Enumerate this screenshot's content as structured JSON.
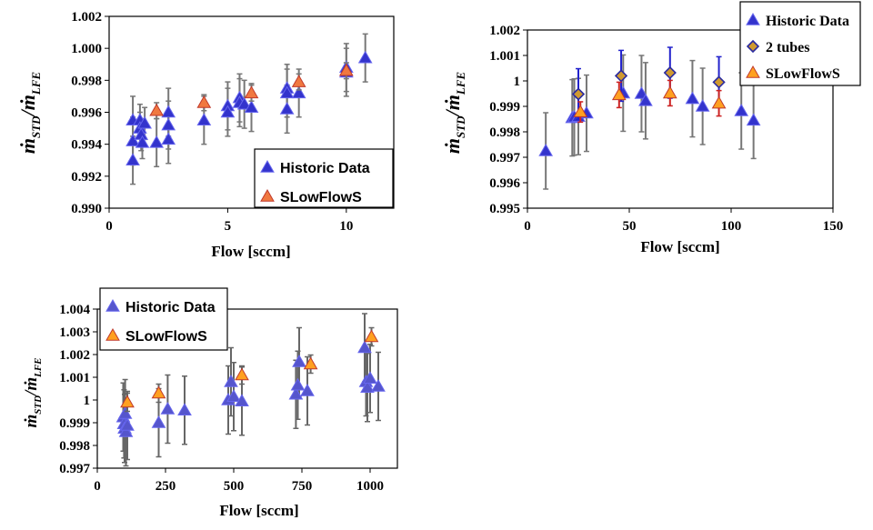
{
  "chart_data": [
    {
      "type": "scatter",
      "xlabel": "Flow [sccm]",
      "ylabel_main": "ṁ",
      "ylabel_sub1": "STD",
      "ylabel_sep": "/ṁ",
      "ylabel_sub2": "LFE",
      "xlim": [
        0,
        12
      ],
      "ylim": [
        0.99,
        1.002
      ],
      "xticks": [
        0,
        5,
        10
      ],
      "yticks": [
        0.99,
        0.992,
        0.994,
        0.996,
        0.998,
        1.0,
        1.002
      ],
      "xtick_labels": [
        "0",
        "5",
        "10"
      ],
      "ytick_labels": [
        "0.990",
        "0.992",
        "0.994",
        "0.996",
        "0.998",
        "1.000",
        "1.002"
      ],
      "legend_position": "bottom-right",
      "series": [
        {
          "name": "Historic Data",
          "marker": "triangle",
          "color": "#3333cc",
          "errcolor": "#777777",
          "points": [
            [
              1.0,
              0.9955,
              0.0015
            ],
            [
              1.0,
              0.9942,
              0.0015
            ],
            [
              1.0,
              0.993,
              0.0015
            ],
            [
              1.3,
              0.9955,
              0.001
            ],
            [
              1.3,
              0.995,
              0.001
            ],
            [
              1.35,
              0.9946,
              0.001
            ],
            [
              1.4,
              0.9941,
              0.001
            ],
            [
              1.5,
              0.9953,
              0.001
            ],
            [
              2.0,
              0.9941,
              0.0015
            ],
            [
              2.5,
              0.996,
              0.0015
            ],
            [
              2.5,
              0.9952,
              0.0015
            ],
            [
              2.5,
              0.9943,
              0.0015
            ],
            [
              4.0,
              0.9955,
              0.0015
            ],
            [
              5.0,
              0.9964,
              0.0015
            ],
            [
              5.0,
              0.996,
              0.0015
            ],
            [
              5.5,
              0.9969,
              0.0015
            ],
            [
              5.5,
              0.9966,
              0.0015
            ],
            [
              5.7,
              0.9965,
              0.0015
            ],
            [
              6.0,
              0.9963,
              0.0015
            ],
            [
              7.5,
              0.9975,
              0.0015
            ],
            [
              7.5,
              0.9972,
              0.0015
            ],
            [
              7.5,
              0.9962,
              0.0015
            ],
            [
              8.0,
              0.9972,
              0.0015
            ],
            [
              10.0,
              0.9988,
              0.0015
            ],
            [
              10.0,
              0.9985,
              0.0015
            ],
            [
              10.8,
              0.9994,
              0.0015
            ]
          ]
        },
        {
          "name": "SLowFlowS",
          "marker": "triangle",
          "color": "#f07840",
          "errcolor": "#777777",
          "points": [
            [
              2.0,
              0.9961,
              0.0005
            ],
            [
              4.0,
              0.9966,
              0.0005
            ],
            [
              6.0,
              0.9972,
              0.0005
            ],
            [
              8.0,
              0.9979,
              0.0005
            ],
            [
              10.0,
              0.9986,
              0.0005
            ]
          ]
        }
      ]
    },
    {
      "type": "scatter",
      "xlabel": "Flow [sccm]",
      "ylabel_main": "ṁ",
      "ylabel_sub1": "STD",
      "ylabel_sep": "/ṁ",
      "ylabel_sub2": "LFE",
      "xlim": [
        0,
        150
      ],
      "ylim": [
        0.995,
        1.002
      ],
      "xticks": [
        0,
        50,
        100,
        150
      ],
      "yticks": [
        0.995,
        0.996,
        0.997,
        0.998,
        0.999,
        1.0,
        1.001,
        1.002
      ],
      "xtick_labels": [
        "0",
        "50",
        "100",
        "150"
      ],
      "ytick_labels": [
        "0.995",
        "0.996",
        "0.997",
        "0.998",
        "0.999",
        "1",
        "1.001",
        "1.002"
      ],
      "legend_position": "top-right",
      "series": [
        {
          "name": "Historic Data",
          "marker": "triangle",
          "color": "#3333cc",
          "errcolor": "#777777",
          "points": [
            [
              9,
              0.99725,
              0.0015
            ],
            [
              22,
              0.99855,
              0.0015
            ],
            [
              23,
              0.99858,
              0.0015
            ],
            [
              25,
              0.9986,
              0.0015
            ],
            [
              29,
              0.99873,
              0.0015
            ],
            [
              47,
              0.99952,
              0.0015
            ],
            [
              56,
              0.9995,
              0.0015
            ],
            [
              58,
              0.99922,
              0.0015
            ],
            [
              81,
              0.9993,
              0.0015
            ],
            [
              86,
              0.999,
              0.0015
            ],
            [
              105,
              0.99882,
              0.0015
            ],
            [
              111,
              0.99845,
              0.0015
            ]
          ]
        },
        {
          "name": "2 tubes",
          "marker": "diamond",
          "color": "#d09a30",
          "errcolor": "#2222cc",
          "points": [
            [
              25,
              0.99948,
              0.001
            ],
            [
              46,
              1.0002,
              0.001
            ],
            [
              70,
              1.00032,
              0.001
            ],
            [
              94,
              0.99995,
              0.001
            ]
          ]
        },
        {
          "name": "SLowFlowS",
          "marker": "triangle",
          "color": "#ffa020",
          "errcolor": "#cc2222",
          "points": [
            [
              26,
              0.99878,
              0.0004
            ],
            [
              45,
              0.99945,
              0.0005
            ],
            [
              70,
              0.99952,
              0.0005
            ],
            [
              94,
              0.99912,
              0.0005
            ]
          ]
        }
      ]
    },
    {
      "type": "scatter",
      "xlabel": "Flow [sccm]",
      "ylabel_main": "ṁ",
      "ylabel_sub1": "STD",
      "ylabel_sep": "/ṁ",
      "ylabel_sub2": "LFE",
      "xlim": [
        0,
        1100
      ],
      "ylim": [
        0.997,
        1.004
      ],
      "xticks": [
        0,
        250,
        500,
        750,
        1000
      ],
      "yticks": [
        0.997,
        0.998,
        0.999,
        1.0,
        1.001,
        1.002,
        1.003,
        1.004
      ],
      "xtick_labels": [
        "0",
        "250",
        "500",
        "750",
        "1000"
      ],
      "ytick_labels": [
        "0.997",
        "0.998",
        "0.999",
        "1",
        "1.001",
        "1.002",
        "1.003",
        "1.004"
      ],
      "legend_position": "top-left",
      "series": [
        {
          "name": "Historic Data",
          "marker": "triangle",
          "color": "#5555cc",
          "errcolor": "#666666",
          "points": [
            [
              95,
              0.99925,
              0.0015
            ],
            [
              98,
              0.99895,
              0.0015
            ],
            [
              100,
              0.99875,
              0.0015
            ],
            [
              102,
              0.9994,
              0.0015
            ],
            [
              105,
              0.9986,
              0.0015
            ],
            [
              110,
              0.99888,
              0.0015
            ],
            [
              225,
              0.999,
              0.0015
            ],
            [
              258,
              0.9996,
              0.0015
            ],
            [
              320,
              0.99955,
              0.0015
            ],
            [
              480,
              1.0,
              0.0015
            ],
            [
              490,
              1.0008,
              0.0015
            ],
            [
              500,
              1.00015,
              0.0015
            ],
            [
              530,
              0.99995,
              0.0015
            ],
            [
              728,
              1.00025,
              0.0015
            ],
            [
              735,
              1.00065,
              0.0015
            ],
            [
              740,
              1.00168,
              0.0015
            ],
            [
              770,
              1.0004,
              0.0015
            ],
            [
              980,
              1.0023,
              0.0015
            ],
            [
              985,
              1.0008,
              0.0015
            ],
            [
              990,
              1.00055,
              0.0015
            ],
            [
              1000,
              1.00095,
              0.0015
            ],
            [
              1030,
              1.0006,
              0.0015
            ]
          ]
        },
        {
          "name": "SLowFlowS",
          "marker": "triangle",
          "color": "#ffa020",
          "errcolor": "#666666",
          "points": [
            [
              110,
              0.9999,
              0.0004
            ],
            [
              225,
              1.0003,
              0.0004
            ],
            [
              530,
              1.0011,
              0.0004
            ],
            [
              782,
              1.00158,
              0.0004
            ],
            [
              1005,
              1.00278,
              0.0004
            ]
          ]
        }
      ]
    }
  ]
}
